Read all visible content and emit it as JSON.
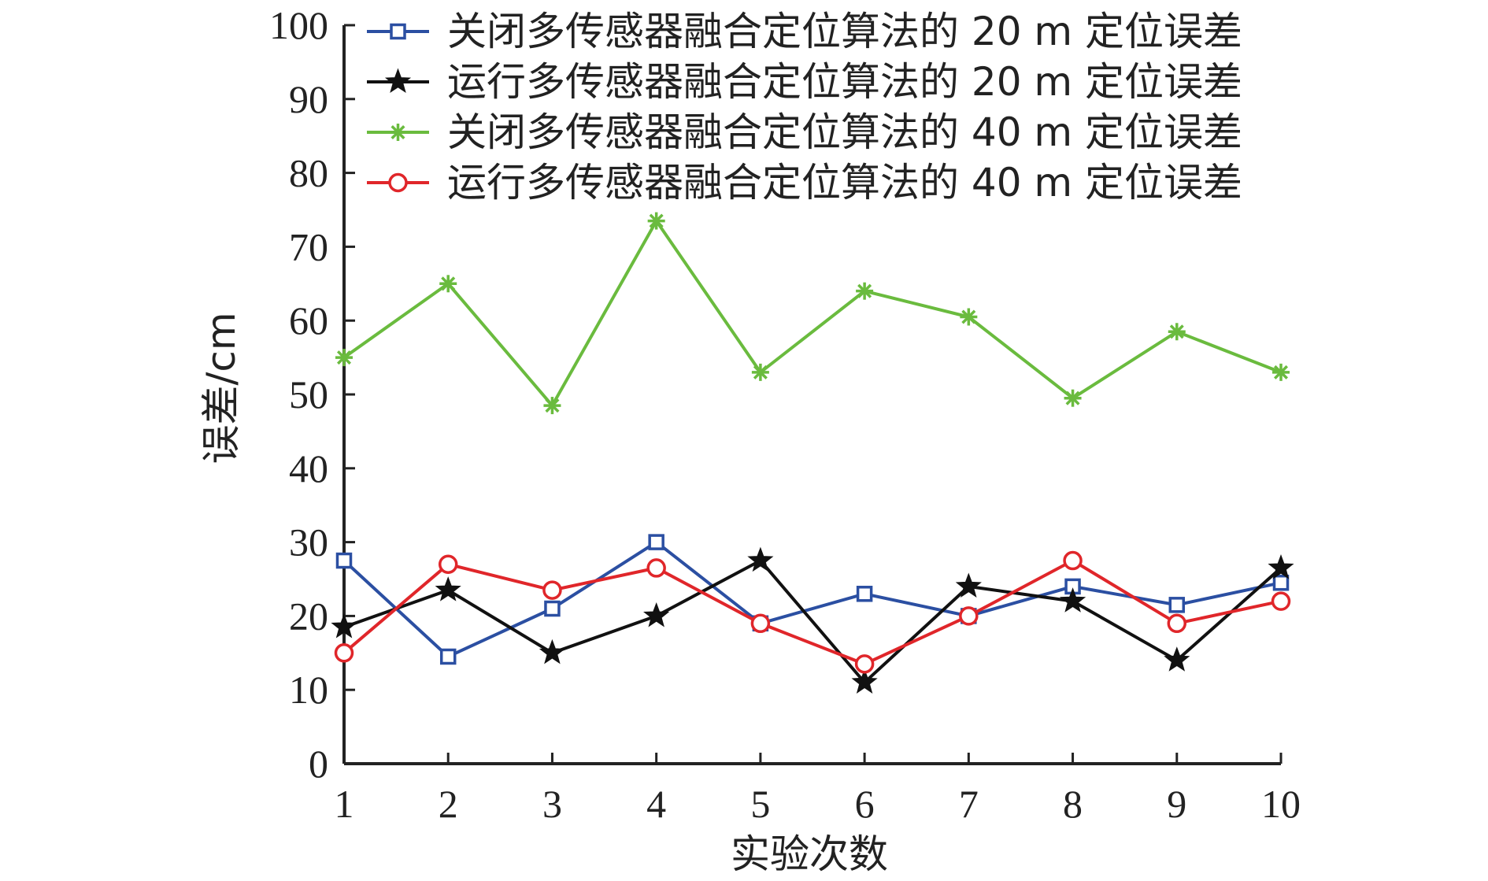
{
  "chart_data": {
    "type": "line",
    "title": "",
    "xlabel": "实验次数",
    "ylabel": "误差/cm",
    "x": [
      1,
      2,
      3,
      4,
      5,
      6,
      7,
      8,
      9,
      10
    ],
    "xlim": [
      1,
      10
    ],
    "ylim": [
      0,
      100
    ],
    "yticks": [
      0,
      10,
      20,
      30,
      40,
      50,
      60,
      70,
      80,
      90,
      100
    ],
    "grid": false,
    "legend_position": "top-right",
    "series": [
      {
        "name": "关闭多传感器融合定位算法的 20 m 定位误差",
        "marker": "square",
        "color": "#2b4fa2",
        "values": [
          27.5,
          14.5,
          21.0,
          30.0,
          19.0,
          23.0,
          20.0,
          24.0,
          21.5,
          24.5
        ]
      },
      {
        "name": "运行多传感器融合定位算法的 20 m 定位误差",
        "marker": "star",
        "color": "#111111",
        "values": [
          18.5,
          23.5,
          15.0,
          20.0,
          27.5,
          11.0,
          24.0,
          22.0,
          14.0,
          26.5
        ]
      },
      {
        "name": "关闭多传感器融合定位算法的 40 m 定位误差",
        "marker": "asterisk",
        "color": "#6abb3e",
        "values": [
          55.0,
          65.0,
          48.5,
          73.5,
          53.0,
          64.0,
          60.5,
          49.5,
          58.5,
          53.0
        ]
      },
      {
        "name": "运行多传感器融合定位算法的 40 m 定位误差",
        "marker": "circle",
        "color": "#e0262a",
        "values": [
          15.0,
          27.0,
          23.5,
          26.5,
          19.0,
          13.5,
          20.0,
          27.5,
          19.0,
          22.0
        ]
      }
    ]
  }
}
